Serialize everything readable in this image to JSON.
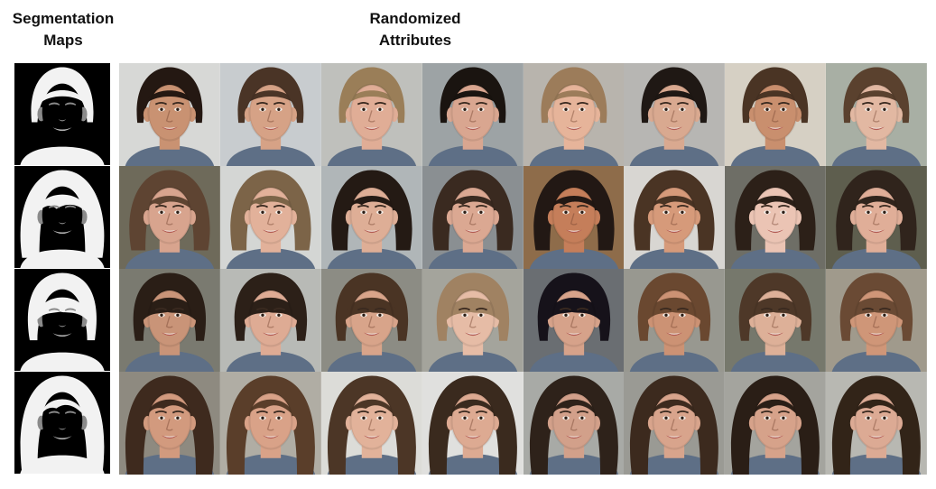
{
  "headings": {
    "segmentation": "Segmentation\nMaps",
    "randomized": "Randomized\nAttributes"
  },
  "segmentation_maps": [
    {
      "hair": "short"
    },
    {
      "hair": "bob-bangs"
    },
    {
      "hair": "bangs"
    },
    {
      "hair": "long"
    }
  ],
  "rows": [
    {
      "hair_style": "short",
      "faces": [
        {
          "skin": "#c99272",
          "hair": "#241812",
          "bg": "#d7d8d6"
        },
        {
          "skin": "#d6a286",
          "hair": "#4a3426",
          "bg": "#c8cccf"
        },
        {
          "skin": "#e0ad96",
          "hair": "#9a7e58",
          "bg": "#bfc0bc"
        },
        {
          "skin": "#d9a690",
          "hair": "#1a1410",
          "bg": "#9da3a5"
        },
        {
          "skin": "#e6b49a",
          "hair": "#9c7c5a",
          "bg": "#b8b4ad"
        },
        {
          "skin": "#d9a990",
          "hair": "#1f1814",
          "bg": "#b7b6b3"
        },
        {
          "skin": "#c98f6e",
          "hair": "#4a3424",
          "bg": "#d6d0c4"
        },
        {
          "skin": "#e2b8a2",
          "hair": "#5a412e",
          "bg": "#a8afa4"
        }
      ]
    },
    {
      "hair_style": "bob",
      "faces": [
        {
          "skin": "#d8a48e",
          "hair": "#5e4432",
          "bg": "#6e6a5a"
        },
        {
          "skin": "#e2b19a",
          "hair": "#7c6448",
          "bg": "#d4d6d4"
        },
        {
          "skin": "#deae96",
          "hair": "#241a14",
          "bg": "#b0b6b8"
        },
        {
          "skin": "#dba892",
          "hair": "#3a2a20",
          "bg": "#8a8f92"
        },
        {
          "skin": "#c57e5a",
          "hair": "#221814",
          "bg": "#8e6c4a"
        },
        {
          "skin": "#d69a7a",
          "hair": "#4a3424",
          "bg": "#d8d6d2"
        },
        {
          "skin": "#ebc4b4",
          "hair": "#2c2018",
          "bg": "#6e6e66"
        },
        {
          "skin": "#e0ae98",
          "hair": "#30241c",
          "bg": "#5e5e4e"
        }
      ]
    },
    {
      "hair_style": "bangs",
      "faces": [
        {
          "skin": "#c99478",
          "hair": "#2a1e16",
          "bg": "#7a7a70"
        },
        {
          "skin": "#deab94",
          "hair": "#2c2018",
          "bg": "#b8bab6"
        },
        {
          "skin": "#d8a48a",
          "hair": "#4a3424",
          "bg": "#8c8c84"
        },
        {
          "skin": "#e6bca6",
          "hair": "#a08262",
          "bg": "#a4a49c"
        },
        {
          "skin": "#d6a28a",
          "hair": "#16121a",
          "bg": "#6a6e72"
        },
        {
          "skin": "#cc9274",
          "hair": "#6a4830",
          "bg": "#989890"
        },
        {
          "skin": "#ddb098",
          "hair": "#4e3828",
          "bg": "#76786c"
        },
        {
          "skin": "#cf9678",
          "hair": "#6a4a34",
          "bg": "#a09a8c"
        }
      ]
    },
    {
      "hair_style": "long",
      "faces": [
        {
          "skin": "#d29a7e",
          "hair": "#3e2a1e",
          "bg": "#8e8a80"
        },
        {
          "skin": "#d9a288",
          "hair": "#5a3e2a",
          "bg": "#b0ada4"
        },
        {
          "skin": "#e2b29a",
          "hair": "#4c3626",
          "bg": "#dcdcd8"
        },
        {
          "skin": "#ddaa92",
          "hair": "#3a2a1e",
          "bg": "#e0e0de"
        },
        {
          "skin": "#d2a08a",
          "hair": "#2e221a",
          "bg": "#a8aaa6"
        },
        {
          "skin": "#d8a48c",
          "hair": "#3c2a1e",
          "bg": "#9a9a94"
        },
        {
          "skin": "#d6a28a",
          "hair": "#2a1e16",
          "bg": "#a4a49e"
        },
        {
          "skin": "#dcaa94",
          "hair": "#322418",
          "bg": "#b8b8b2"
        }
      ]
    }
  ]
}
